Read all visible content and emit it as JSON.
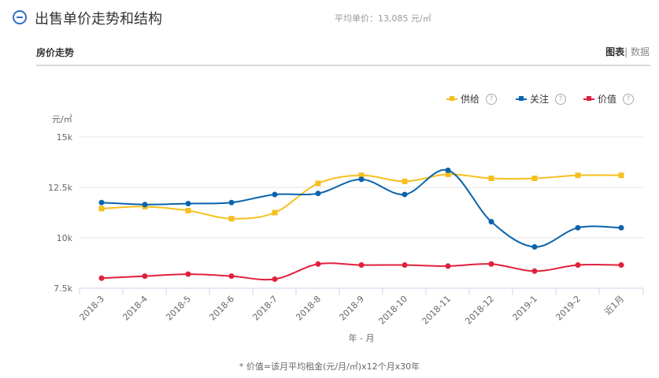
{
  "header": {
    "title": "出售单价走势和结构",
    "avg_label": "平均单价：",
    "avg_value": "13,085 元/㎡"
  },
  "section": {
    "title": "房价走势",
    "tab_chart": "图表",
    "tab_sep": "|",
    "tab_data": " 数据"
  },
  "footnote": "* 价值=该月平均租金(元/月/㎡)x12个月x30年",
  "chart_data": {
    "type": "line",
    "ylabel": "元/㎡",
    "xlabel": "年 - 月",
    "ylim": [
      7500,
      15000
    ],
    "yticks": [
      {
        "v": 7500,
        "label": "7.5k"
      },
      {
        "v": 10000,
        "label": "10k"
      },
      {
        "v": 12500,
        "label": "12.5k"
      },
      {
        "v": 15000,
        "label": "15k"
      }
    ],
    "grid": true,
    "legend": "top-right",
    "categories": [
      "2018-3",
      "2018-4",
      "2018-5",
      "2018-6",
      "2018-7",
      "2018-8",
      "2018-9",
      "2018-10",
      "2018-11",
      "2018-12",
      "2019-1",
      "2019-2",
      "近1月"
    ],
    "series": [
      {
        "name": "供给",
        "color": "#f5bf1f",
        "marker": "square",
        "values": [
          11450,
          11550,
          11350,
          10950,
          11250,
          12700,
          13100,
          12800,
          13150,
          12950,
          12950,
          13100,
          13100
        ]
      },
      {
        "name": "关注",
        "color": "#0a63ad",
        "marker": "circle",
        "values": [
          11750,
          11650,
          11700,
          11750,
          12150,
          12200,
          12900,
          12150,
          13350,
          10800,
          9550,
          10500,
          10500
        ]
      },
      {
        "name": "价值",
        "color": "#e0203c",
        "marker": "circle",
        "values": [
          8000,
          8100,
          8200,
          8100,
          7950,
          8700,
          8650,
          8650,
          8600,
          8700,
          8350,
          8650,
          8650
        ]
      }
    ]
  }
}
